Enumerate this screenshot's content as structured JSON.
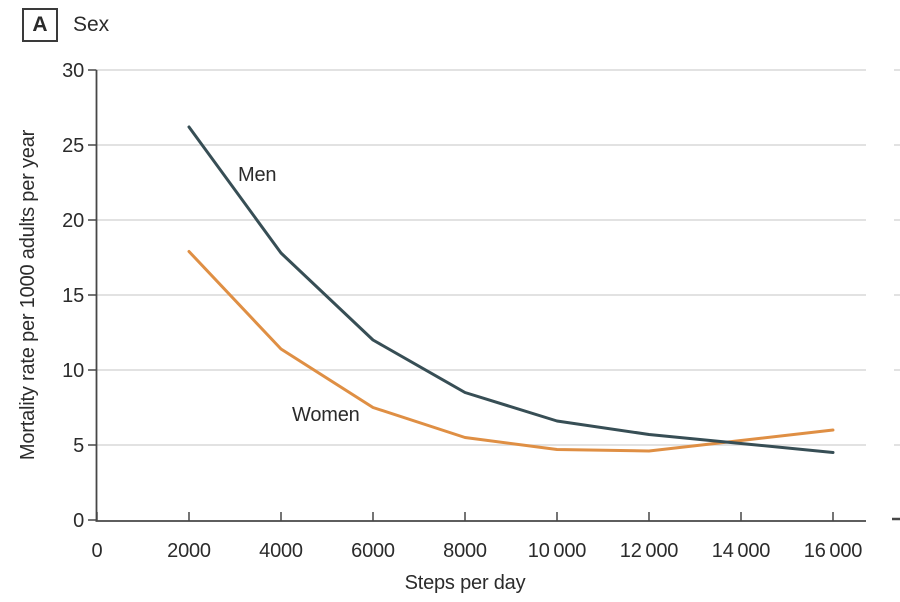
{
  "panel": {
    "label": "A",
    "title": "Sex"
  },
  "colors": {
    "men_line": "#374E55",
    "women_line": "#DF8F44",
    "gridline": "#D9D9D9",
    "axis": "#474747",
    "text": "#2B2B2B"
  },
  "chart_data": {
    "type": "line",
    "title": "Sex",
    "xlabel": "Steps per day",
    "ylabel": "Mortality rate per 1000 adults per year",
    "xlim": [
      0,
      16000
    ],
    "ylim": [
      0,
      30
    ],
    "xticks": [
      0,
      2000,
      4000,
      6000,
      8000,
      10000,
      12000,
      14000,
      16000
    ],
    "xtick_labels": [
      "0",
      "2000",
      "4000",
      "6000",
      "8000",
      "10 000",
      "12 000",
      "14 000",
      "16 000"
    ],
    "yticks": [
      0,
      5,
      10,
      15,
      20,
      25,
      30
    ],
    "ytick_labels": [
      "0",
      "5",
      "10",
      "15",
      "20",
      "25",
      "30"
    ],
    "grid": "horizontal",
    "gridline_values": [
      5,
      10,
      15,
      20,
      25,
      30
    ],
    "legend_position": "inline-labels",
    "x": [
      2000,
      4000,
      6000,
      8000,
      10000,
      12000,
      14000,
      16000
    ],
    "series": [
      {
        "name": "Women",
        "color_key": "women_line",
        "values": [
          17.9,
          11.4,
          7.5,
          5.5,
          4.7,
          4.6,
          5.3,
          6.0
        ],
        "label": {
          "text": "Women",
          "x": 4240,
          "y": 6.6
        }
      },
      {
        "name": "Men",
        "color_key": "men_line",
        "values": [
          26.2,
          17.8,
          12.0,
          8.5,
          6.6,
          5.7,
          5.1,
          4.5
        ],
        "label": {
          "text": "Men",
          "x": 3065,
          "y": 22.6
        }
      }
    ]
  }
}
